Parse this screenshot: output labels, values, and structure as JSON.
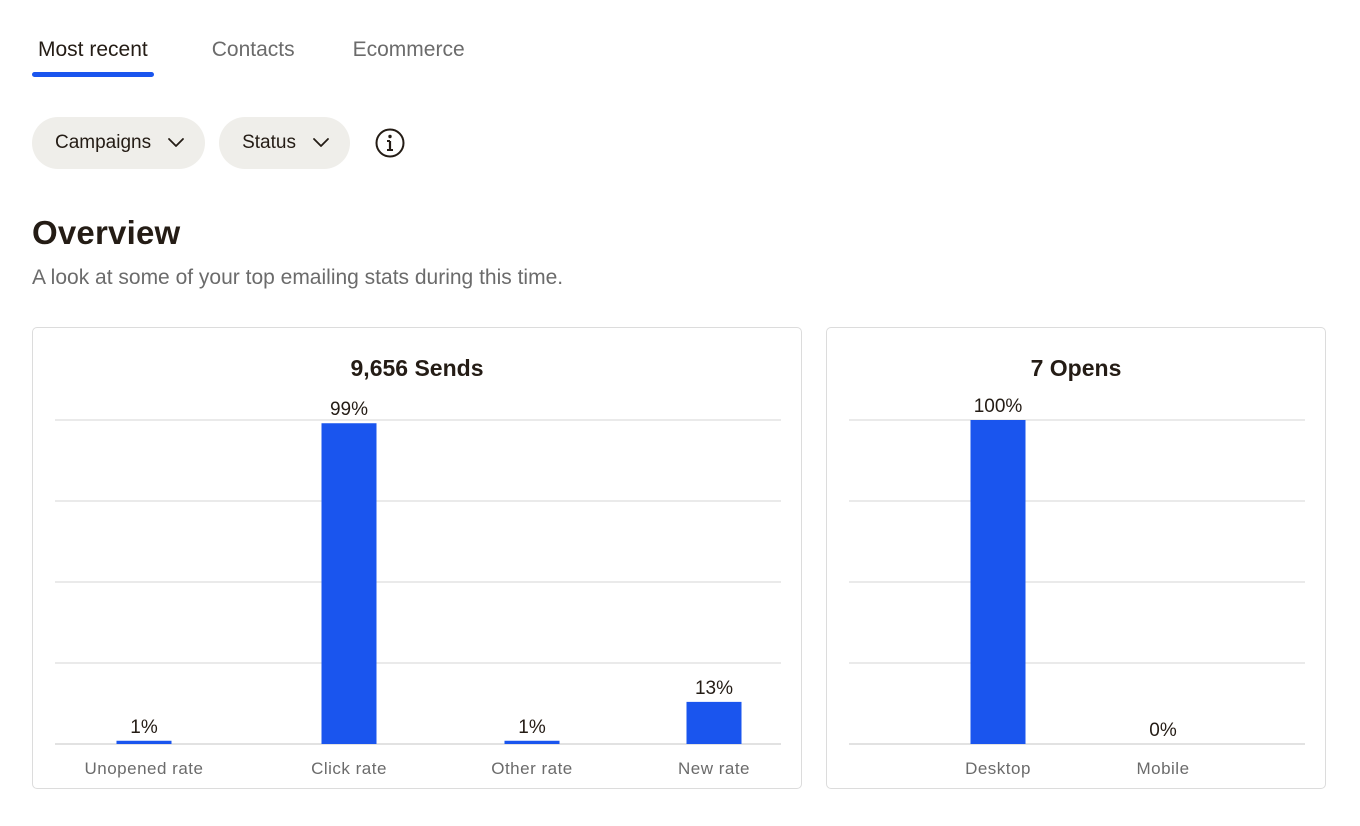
{
  "tabs": [
    {
      "label": "Most recent",
      "active": true
    },
    {
      "label": "Contacts",
      "active": false
    },
    {
      "label": "Ecommerce",
      "active": false
    }
  ],
  "filters": {
    "campaigns_label": "Campaigns",
    "status_label": "Status",
    "info_icon": "info-circle-icon",
    "chevron_icon": "chevron-down-icon"
  },
  "overview": {
    "title": "Overview",
    "subtitle": "A look at some of your top emailing stats during this time."
  },
  "colors": {
    "accent": "#1a55ee",
    "grid": "#e3e3e3",
    "pill_bg": "#efeeea"
  },
  "chart_data": [
    {
      "type": "bar",
      "title": "9,656 Sends",
      "categories": [
        "Unopened rate",
        "Click rate",
        "Other rate",
        "New rate"
      ],
      "values": [
        1,
        99,
        1,
        13
      ],
      "data_labels": [
        "1%",
        "99%",
        "1%",
        "13%"
      ],
      "ylim": [
        0,
        100
      ],
      "grid": true,
      "legend": "none"
    },
    {
      "type": "bar",
      "title": "7 Opens",
      "categories": [
        "Desktop",
        "Mobile"
      ],
      "values": [
        100,
        0
      ],
      "data_labels": [
        "100%",
        "0%"
      ],
      "ylim": [
        0,
        100
      ],
      "grid": true,
      "legend": "none"
    }
  ]
}
